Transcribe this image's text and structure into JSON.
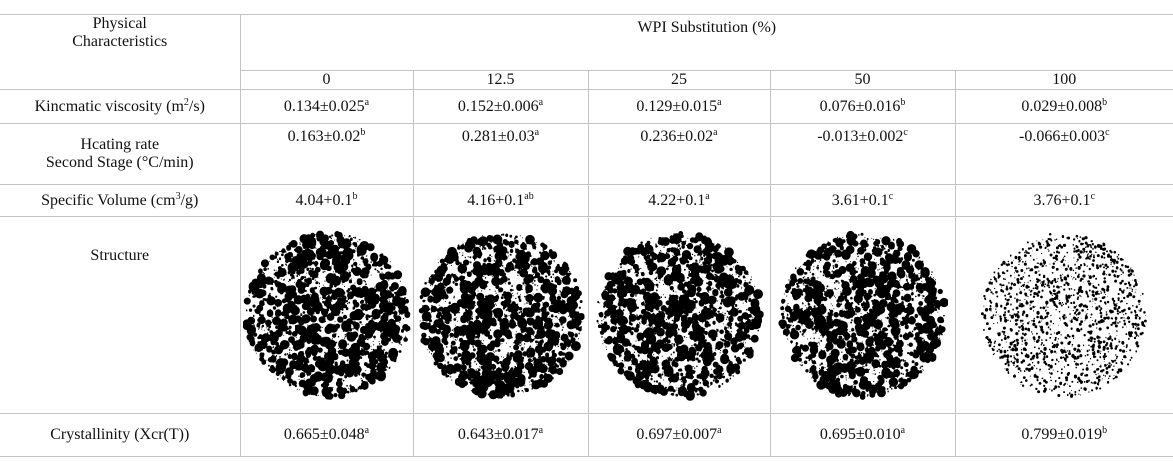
{
  "table": {
    "header": {
      "corner": "Physical Characteristics",
      "group": "WPI Substitution (%)",
      "columns": [
        "0",
        "12.5",
        "25",
        "50",
        "100"
      ]
    },
    "rows": [
      {
        "label": {
          "text": "Kincmatic viscosity (m",
          "sup": "2",
          "tail": "/s)"
        },
        "cells": [
          {
            "value": "0.134±0.025",
            "sup": "a"
          },
          {
            "value": "0.152±0.006",
            "sup": "a"
          },
          {
            "value": "0.129±0.015",
            "sup": "a"
          },
          {
            "value": "0.076±0.016",
            "sup": "b"
          },
          {
            "value": "0.029±0.008",
            "sup": "b"
          }
        ]
      },
      {
        "label": {
          "lines": [
            "Hcating rate",
            "Second Stage (°C/min)"
          ]
        },
        "cells": [
          {
            "value": "0.163±0.02",
            "sup": "b"
          },
          {
            "value": "0.281±0.03",
            "sup": "a"
          },
          {
            "value": "0.236±0.02",
            "sup": "a"
          },
          {
            "value": "-0.013±0.002",
            "sup": "c"
          },
          {
            "value": "-0.066±0.003",
            "sup": "c"
          }
        ]
      },
      {
        "label": {
          "text": "Specific Volume (cm",
          "sup": "3",
          "tail": "/g)"
        },
        "cells": [
          {
            "value": "4.04+0.1",
            "sup": "b"
          },
          {
            "value": "4.16+0.1",
            "sup": "ab"
          },
          {
            "value": "4.22+0.1",
            "sup": "a"
          },
          {
            "value": "3.61+0.1",
            "sup": "c"
          },
          {
            "value": "3.76+0.1",
            "sup": "c"
          }
        ]
      },
      {
        "label": {
          "text": "Structure"
        },
        "cells": []
      },
      {
        "label": {
          "text": "Crystallinity (Xcr(T))"
        },
        "cells": [
          {
            "value": "0.665±0.048",
            "sup": "a"
          },
          {
            "value": "0.643±0.017",
            "sup": "a"
          },
          {
            "value": "0.697±0.007",
            "sup": "a"
          },
          {
            "value": "0.695±0.010",
            "sup": "a"
          },
          {
            "value": "0.799±0.019",
            "sup": "b"
          }
        ]
      }
    ]
  }
}
